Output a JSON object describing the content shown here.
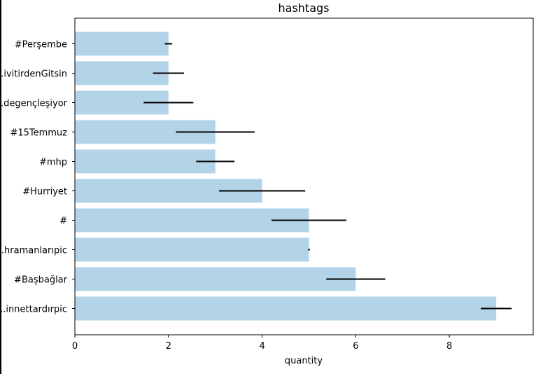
{
  "chart_data": {
    "type": "bar",
    "orientation": "horizontal",
    "title": "hashtags",
    "xlabel": "quantity",
    "ylabel": "",
    "xlim": [
      0,
      9.8
    ],
    "xticks": [
      0,
      2,
      4,
      6,
      8
    ],
    "grid": false,
    "bar_color": "#b3d4e8",
    "errorbar_color": "#000000",
    "categories": [
      "#Perşembe",
      "...ivitirdenGitsin",
      "...degençleşiyor",
      "#15Temmuz",
      "#mhp",
      "#Hurriyet",
      "#",
      "...hramanlarıpic",
      "#Başbağlar",
      "...innettardırpic"
    ],
    "values": [
      2,
      2,
      2,
      3,
      3,
      4,
      5,
      5,
      6,
      9
    ],
    "errors": [
      0.08,
      0.33,
      0.53,
      0.84,
      0.41,
      0.92,
      0.8,
      0.02,
      0.63,
      0.33
    ]
  }
}
